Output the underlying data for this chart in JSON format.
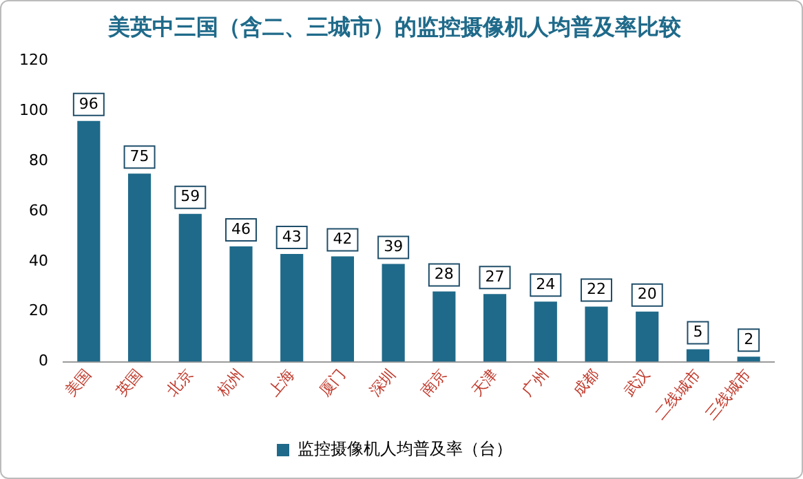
{
  "chart_data": {
    "type": "bar",
    "title": "美英中三国（含二、三城市）的监控摄像机人均普及率比较",
    "categories": [
      "美国",
      "英国",
      "北京",
      "杭州",
      "上海",
      "厦门",
      "深圳",
      "南京",
      "天津",
      "广州",
      "成都",
      "武汉",
      "二线城市",
      "三线城市"
    ],
    "series": [
      {
        "name": "监控摄像机人均普及率（台）",
        "color": "#1f6a8a",
        "values": [
          96,
          75,
          59,
          46,
          43,
          42,
          39,
          28,
          27,
          24,
          22,
          20,
          5,
          2
        ]
      }
    ],
    "ylim": [
      0,
      120
    ],
    "yticks": [
      0,
      20,
      40,
      60,
      80,
      100,
      120
    ],
    "grid": false,
    "legend": "bottom",
    "data_labels": true
  }
}
